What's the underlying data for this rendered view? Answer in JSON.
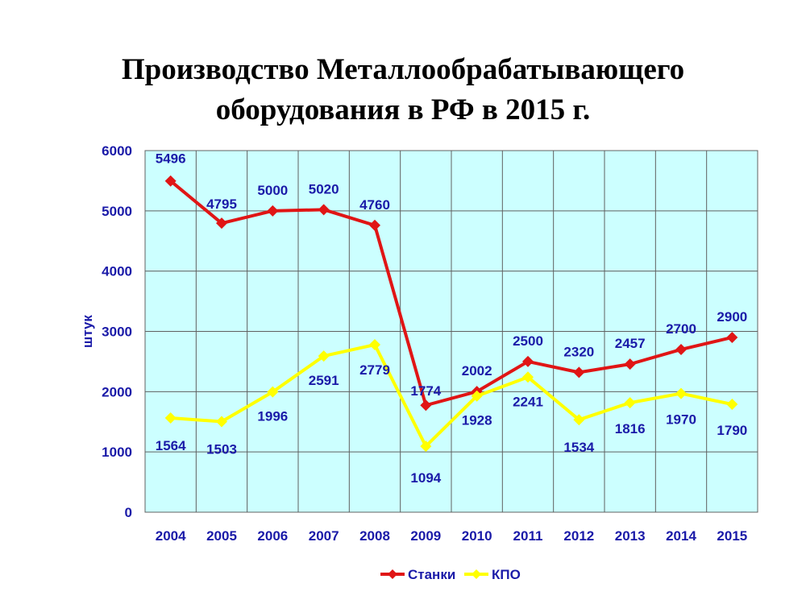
{
  "chart_data": {
    "type": "line",
    "title_lines": [
      "Производство Металлообрабатывающего",
      "оборудования в РФ в 2015 г."
    ],
    "ylabel": "штук",
    "xlabel": "",
    "categories": [
      "2004",
      "2005",
      "2006",
      "2007",
      "2008",
      "2009",
      "2010",
      "2011",
      "2012",
      "2013",
      "2014",
      "2015"
    ],
    "ylim": [
      0,
      6000
    ],
    "yticks": [
      0,
      1000,
      2000,
      3000,
      4000,
      5000,
      6000
    ],
    "grid": true,
    "legend_position": "bottom",
    "series": [
      {
        "name": "Станки",
        "color": "#e01515",
        "marker": "diamond",
        "values": [
          5496,
          4795,
          5000,
          5020,
          4760,
          1774,
          2002,
          2500,
          2320,
          2457,
          2700,
          2900
        ],
        "labels": [
          "5496",
          "4795",
          "5000",
          "5020",
          "4760",
          "1774",
          "2002",
          "2500",
          "2320",
          "2457",
          "2700",
          "2900"
        ]
      },
      {
        "name": "КПО",
        "color": "#ffff00",
        "marker": "diamond",
        "values": [
          1564,
          1503,
          1996,
          2591,
          2779,
          1094,
          1928,
          2241,
          1534,
          1816,
          1970,
          1790
        ],
        "labels": [
          "1564",
          "1503",
          "1996",
          "2591",
          "2779",
          "1094",
          "1928",
          "2241",
          "1534",
          "1816",
          "1970",
          "1790"
        ]
      }
    ],
    "colors": {
      "plot_background": "#ccffff",
      "grid": "#606060",
      "text": "#1a1aa8"
    }
  }
}
